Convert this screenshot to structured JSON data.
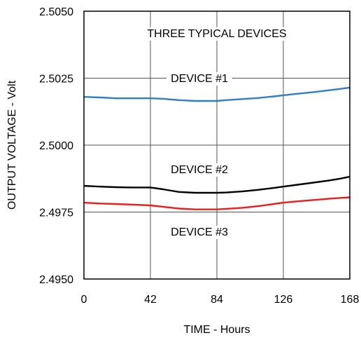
{
  "chart_data": {
    "type": "line",
    "xlabel": "TIME - Hours",
    "ylabel": "OUTPUT VOLTAGE - Volt",
    "xlim": [
      0,
      168
    ],
    "ylim": [
      2.495,
      2.505
    ],
    "x_ticks": [
      "0",
      "42",
      "84",
      "126",
      "168"
    ],
    "y_ticks": [
      "2.4950",
      "2.4975",
      "2.5000",
      "2.5025",
      "2.5050"
    ],
    "grid": true,
    "annotations": {
      "title": "THREE TYPICAL DEVICES",
      "device1": "DEVICE #1",
      "device2": "DEVICE #2",
      "device3": "DEVICE #3"
    },
    "series": [
      {
        "name": "DEVICE #1",
        "color": "#2e7fc3",
        "x": [
          0,
          10,
          20,
          30,
          42,
          50,
          60,
          70,
          80,
          84,
          90,
          100,
          110,
          120,
          126,
          135,
          145,
          155,
          162,
          168
        ],
        "y": [
          2.5018,
          2.50178,
          2.50175,
          2.50175,
          2.50175,
          2.50173,
          2.50168,
          2.50165,
          2.50165,
          2.50165,
          2.50168,
          2.50172,
          2.50176,
          2.50182,
          2.50186,
          2.50192,
          2.50198,
          2.50205,
          2.5021,
          2.50215
        ]
      },
      {
        "name": "DEVICE #2",
        "color": "#000000",
        "x": [
          0,
          10,
          20,
          30,
          42,
          50,
          60,
          70,
          80,
          84,
          90,
          100,
          110,
          120,
          126,
          135,
          145,
          155,
          162,
          168
        ],
        "y": [
          2.49848,
          2.49845,
          2.49843,
          2.49842,
          2.49842,
          2.49835,
          2.49825,
          2.49822,
          2.49822,
          2.49822,
          2.49823,
          2.49827,
          2.49833,
          2.4984,
          2.49845,
          2.49852,
          2.4986,
          2.49868,
          2.49875,
          2.49882
        ]
      },
      {
        "name": "DEVICE #3",
        "color": "#ee1c1c",
        "x": [
          0,
          10,
          20,
          30,
          42,
          50,
          60,
          70,
          80,
          84,
          90,
          100,
          110,
          120,
          126,
          135,
          145,
          155,
          162,
          168
        ],
        "y": [
          2.49785,
          2.49782,
          2.4978,
          2.49778,
          2.49775,
          2.4977,
          2.49763,
          2.4976,
          2.4976,
          2.4976,
          2.49762,
          2.49766,
          2.49772,
          2.4978,
          2.49785,
          2.4979,
          2.49795,
          2.498,
          2.49803,
          2.49805
        ]
      }
    ]
  }
}
